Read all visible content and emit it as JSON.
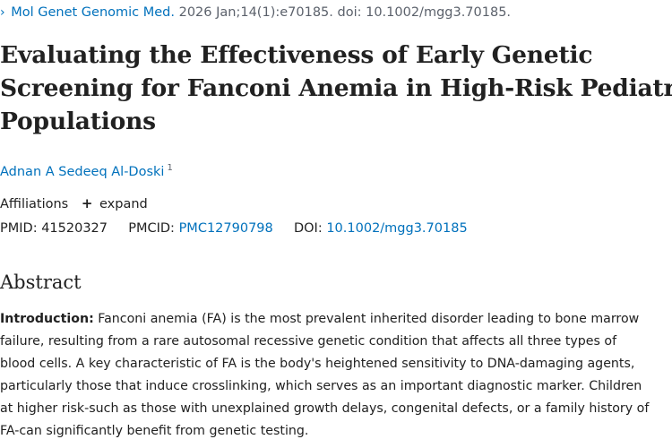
{
  "citation": {
    "chevron": "›",
    "journal": "Mol Genet Genomic Med.",
    "details": "2026 Jan;14(1):e70185. doi: 10.1002/mgg3.70185."
  },
  "article": {
    "title_lines": [
      "Evaluating the Effectiveness of Early Genetic",
      "Screening for Fanconi Anemia in High-Risk Pediatric",
      "Populations"
    ],
    "author": "Adnan A Sedeeq Al-Doski",
    "author_affiliation_number": "1",
    "affiliations_label": "Affiliations",
    "expand_label": "expand",
    "pmid_label": "PMID:",
    "pmid": "41520327",
    "pmcid_label": "PMCID:",
    "pmcid": "PMC12790798",
    "doi_label": "DOI:",
    "doi": "10.1002/mgg3.70185"
  },
  "abstract": {
    "heading": "Abstract",
    "intro_label": "Introduction:",
    "lines": [
      " Fanconi anemia (FA) is the most prevalent inherited disorder leading to bone marrow",
      "failure, resulting from a rare autosomal recessive genetic condition that affects all three types of",
      "blood cells. A key characteristic of FA is the body's heightened sensitivity to DNA-damaging agents,",
      "particularly those that induce crosslinking, which serves as an important diagnostic marker. Children",
      "at higher risk-such as those with unexplained growth delays, congenital defects, or a family history of",
      "FA-can significantly benefit from genetic testing."
    ]
  },
  "colors": {
    "link": "#0071bc",
    "text": "#212121",
    "muted": "#5b616b"
  }
}
